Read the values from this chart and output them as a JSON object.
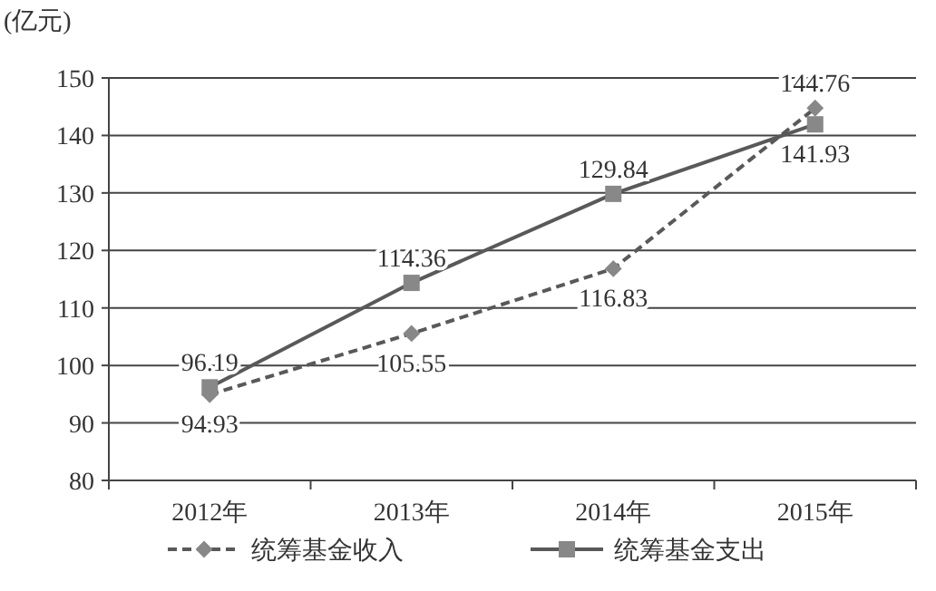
{
  "chart_data": {
    "type": "line",
    "ylabel": "(亿元)",
    "categories": [
      "2012年",
      "2013年",
      "2014年",
      "2015年"
    ],
    "series": [
      {
        "name": "统筹基金收入",
        "color": "#595959",
        "marker": "diamond",
        "line_style": "dashed",
        "values": [
          94.93,
          105.55,
          116.83,
          144.76
        ]
      },
      {
        "name": "统筹基金支出",
        "color": "#595959",
        "marker": "square",
        "line_style": "solid",
        "values": [
          96.19,
          114.36,
          129.84,
          141.93
        ]
      }
    ],
    "ylim": [
      80,
      150
    ],
    "yticks": [
      80,
      90,
      100,
      110,
      120,
      130,
      140,
      150
    ],
    "grid": "y",
    "data_labels": true,
    "legend": "bottom"
  }
}
